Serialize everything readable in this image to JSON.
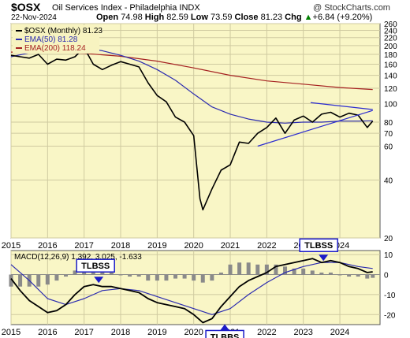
{
  "header": {
    "ticker": "$OSX",
    "name": "Oil Services Index - Philadelphia INDX",
    "watermark": "@ StockCharts.com",
    "date": "22-Nov-2024",
    "open_label": "Open",
    "open": "74.98",
    "high_label": "High",
    "high": "82.59",
    "low_label": "Low",
    "low": "73.59",
    "close_label": "Close",
    "close": "81.23",
    "chg_label": "Chg",
    "chg": "+6.84 (+9.20%)",
    "chg_icon": "up-triangle-icon"
  },
  "colors": {
    "panel_bg": "#f9f6c6",
    "price": "#000000",
    "ema50": "#2b2bb0",
    "ema200": "#a52020",
    "macd": "#000000",
    "signal": "#2b2bb0",
    "histogram": "#8a8a8a",
    "trendline": "#2b2bd0",
    "annotation_box": "#1c1cc8",
    "arrow": "#1c1cc8"
  },
  "chart_data": [
    {
      "type": "line",
      "series_style": "monthly candlestick (approximated by close line)",
      "y_scale": "log",
      "ylim": [
        20,
        260
      ],
      "y_ticks": [
        20,
        40,
        60,
        70,
        80,
        100,
        120,
        140,
        160,
        180,
        200,
        220,
        240,
        260
      ],
      "x_ticks": [
        "2015",
        "2016",
        "2017",
        "2018",
        "2019",
        "2020",
        "2021",
        "2022",
        "2023",
        "2024"
      ],
      "legend": [
        {
          "label": "$OSX (Monthly) 81.23",
          "color": "#000000"
        },
        {
          "label": "EMA(50) 81.28",
          "color": "#2b2bb0"
        },
        {
          "label": "EMA(200) 118.24",
          "color": "#a52020"
        }
      ],
      "series": [
        {
          "name": "$OSX (Monthly)",
          "x": [
            2015.0,
            2015.25,
            2015.5,
            2015.75,
            2016.0,
            2016.25,
            2016.5,
            2016.75,
            2017.0,
            2017.25,
            2017.5,
            2017.75,
            2018.0,
            2018.25,
            2018.5,
            2018.75,
            2019.0,
            2019.25,
            2019.5,
            2019.75,
            2020.0,
            2020.17,
            2020.25,
            2020.5,
            2020.75,
            2021.0,
            2021.25,
            2021.5,
            2021.75,
            2022.0,
            2022.25,
            2022.5,
            2022.75,
            2023.0,
            2023.25,
            2023.5,
            2023.75,
            2024.0,
            2024.25,
            2024.5,
            2024.75,
            2024.9
          ],
          "values": [
            178,
            175,
            172,
            180,
            160,
            170,
            168,
            175,
            195,
            160,
            150,
            158,
            165,
            160,
            155,
            128,
            110,
            102,
            85,
            80,
            68,
            32,
            28,
            36,
            45,
            48,
            63,
            62,
            70,
            75,
            84,
            70,
            82,
            86,
            80,
            88,
            90,
            85,
            89,
            87,
            75,
            81
          ]
        },
        {
          "name": "EMA(50)",
          "x": [
            2015.0,
            2015.5,
            2016.0,
            2016.5,
            2017.0,
            2017.5,
            2018.0,
            2018.5,
            2019.0,
            2019.5,
            2020.0,
            2020.5,
            2021.0,
            2021.5,
            2022.0,
            2022.5,
            2023.0,
            2023.5,
            2024.0,
            2024.5,
            2024.9
          ],
          "values": [
            175,
            183,
            188,
            193,
            195,
            188,
            178,
            166,
            150,
            132,
            112,
            96,
            88,
            83,
            80,
            79,
            80,
            80,
            81,
            81,
            81.28
          ]
        },
        {
          "name": "EMA(200)",
          "x": [
            2015.0,
            2016.0,
            2017.0,
            2018.0,
            2019.0,
            2020.0,
            2021.0,
            2022.0,
            2023.0,
            2024.0,
            2024.9
          ],
          "values": [
            185,
            184,
            182,
            176,
            166,
            153,
            140,
            131,
            126,
            121,
            118.24
          ]
        }
      ],
      "trendlines": [
        {
          "from": [
            2021.75,
            60
          ],
          "to": [
            2024.9,
            92
          ]
        },
        {
          "from": [
            2023.2,
            101
          ],
          "to": [
            2024.9,
            93
          ]
        }
      ]
    },
    {
      "type": "line",
      "title": "MACD(12,26,9) 1.392, 3.025, -1.633",
      "ylim": [
        -25,
        12
      ],
      "y_ticks": [
        -20,
        -10,
        0,
        10
      ],
      "x_ticks": [
        "2015",
        "2016",
        "2017",
        "2018",
        "2019",
        "2020",
        "2021",
        "2022",
        "2023",
        "2024"
      ],
      "series": [
        {
          "name": "MACD",
          "x": [
            2015.0,
            2015.25,
            2015.5,
            2015.75,
            2016.0,
            2016.25,
            2016.5,
            2016.75,
            2017.0,
            2017.25,
            2017.5,
            2017.75,
            2018.0,
            2018.25,
            2018.5,
            2018.75,
            2019.0,
            2019.25,
            2019.5,
            2019.75,
            2020.0,
            2020.25,
            2020.5,
            2020.75,
            2021.0,
            2021.25,
            2021.5,
            2021.75,
            2022.0,
            2022.25,
            2022.5,
            2022.75,
            2023.0,
            2023.25,
            2023.5,
            2023.75,
            2024.0,
            2024.25,
            2024.5,
            2024.75,
            2024.9
          ],
          "values": [
            -2,
            -8,
            -13,
            -16,
            -19,
            -18,
            -15,
            -10,
            -6,
            -5,
            -6,
            -6,
            -7,
            -8,
            -9,
            -12,
            -14,
            -15,
            -16,
            -17,
            -20,
            -24,
            -22,
            -16,
            -11,
            -6,
            -3,
            -1,
            1,
            4,
            5,
            6,
            7,
            8,
            6,
            7,
            6,
            4,
            3,
            1,
            1.392
          ]
        },
        {
          "name": "Signal",
          "x": [
            2015.0,
            2015.5,
            2016.0,
            2016.5,
            2017.0,
            2017.5,
            2018.0,
            2018.5,
            2019.0,
            2019.5,
            2020.0,
            2020.5,
            2021.0,
            2021.5,
            2022.0,
            2022.5,
            2023.0,
            2023.5,
            2024.0,
            2024.5,
            2024.9
          ],
          "values": [
            5,
            -3,
            -12,
            -15,
            -12,
            -8,
            -7,
            -8,
            -11,
            -14,
            -17,
            -20,
            -17,
            -10,
            -4,
            1,
            4,
            6,
            6,
            4,
            3.025
          ]
        },
        {
          "name": "Histogram",
          "x": [
            2015.0,
            2015.25,
            2015.5,
            2015.75,
            2016.0,
            2016.25,
            2016.5,
            2016.75,
            2017.0,
            2017.25,
            2017.5,
            2017.75,
            2018.0,
            2018.25,
            2018.5,
            2018.75,
            2019.0,
            2019.25,
            2019.5,
            2019.75,
            2020.0,
            2020.25,
            2020.5,
            2020.75,
            2021.0,
            2021.25,
            2021.5,
            2021.75,
            2022.0,
            2022.25,
            2022.5,
            2022.75,
            2023.0,
            2023.25,
            2023.5,
            2023.75,
            2024.0,
            2024.25,
            2024.5,
            2024.75,
            2024.9
          ],
          "values": [
            -6,
            -6,
            -6,
            -6,
            -5,
            -3,
            -1,
            2,
            4,
            3,
            2,
            1,
            0,
            -1,
            -1,
            -3,
            -3,
            -3,
            -2,
            -2,
            -3,
            -4,
            -3,
            1,
            5,
            6,
            6,
            5,
            5,
            5,
            4,
            3,
            3,
            2,
            1,
            1,
            0,
            -1,
            -1,
            -2,
            -1.633
          ]
        }
      ],
      "annotations": [
        {
          "text": "TLBSS",
          "at": [
            2017.4,
            -5
          ]
        },
        {
          "text": "TLBBS",
          "at": [
            2020.85,
            -24
          ]
        },
        {
          "text": "TLBSS",
          "at": [
            2023.55,
            6
          ]
        }
      ]
    }
  ]
}
